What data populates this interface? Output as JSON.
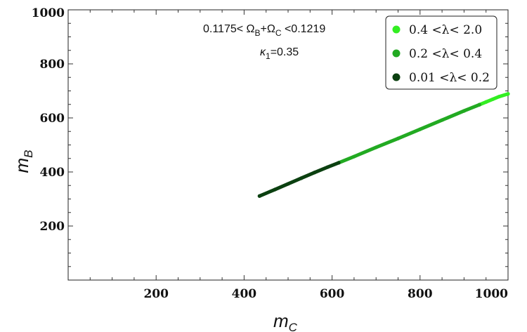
{
  "chart_data": {
    "type": "scatter",
    "xlabel": "m",
    "xlabel_sub": "C",
    "ylabel": "m",
    "ylabel_sub": "B",
    "xlim": [
      0,
      1000
    ],
    "ylim": [
      0,
      1000
    ],
    "x_ticks": [
      "200",
      "400",
      "600",
      "800",
      "1000"
    ],
    "y_ticks": [
      "200",
      "400",
      "600",
      "800",
      "1000"
    ],
    "grid": false,
    "annotations": [
      {
        "parts": [
          "0.1175< Ω",
          "B",
          "+Ω",
          "C",
          " <0.1219"
        ]
      },
      {
        "parts": [
          "κ",
          "1",
          "=0.35"
        ]
      }
    ],
    "legend_position": "top-right",
    "series": [
      {
        "name": "0.4 <λ< 2.0",
        "color": "#33ee22",
        "points": [
          [
            935,
            649
          ],
          [
            950,
            659
          ],
          [
            965,
            669
          ],
          [
            980,
            679
          ],
          [
            1000,
            689
          ]
        ]
      },
      {
        "name": "0.2 <λ< 0.4",
        "color": "#22aa22",
        "points": [
          [
            615,
            434
          ],
          [
            650,
            457
          ],
          [
            700,
            491
          ],
          [
            750,
            524
          ],
          [
            800,
            558
          ],
          [
            850,
            592
          ],
          [
            900,
            626
          ],
          [
            935,
            649
          ]
        ]
      },
      {
        "name": "0.01 <λ< 0.2",
        "color": "#0b4010",
        "points": [
          [
            435,
            311
          ],
          [
            470,
            335
          ],
          [
            500,
            356
          ],
          [
            530,
            377
          ],
          [
            560,
            398
          ],
          [
            590,
            418
          ],
          [
            615,
            434
          ]
        ]
      }
    ]
  }
}
